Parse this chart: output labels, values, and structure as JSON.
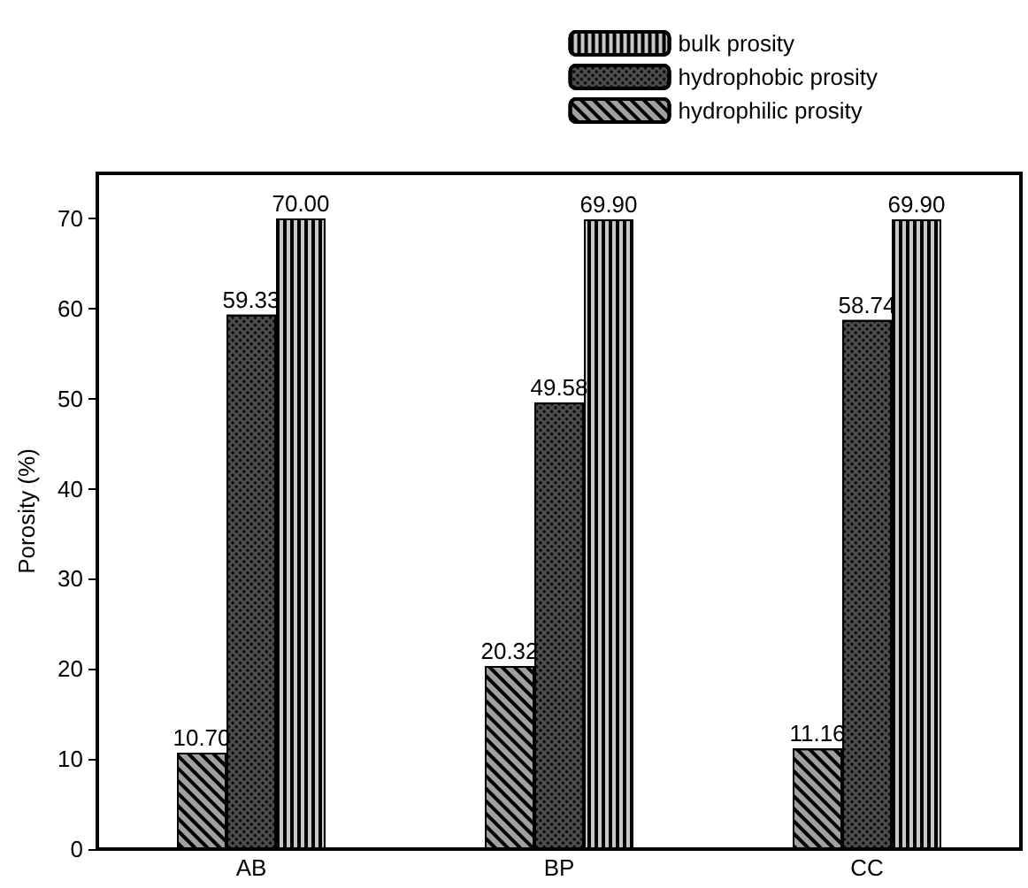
{
  "chart_data": {
    "type": "bar",
    "ylabel": "Porosity (%)",
    "categories": [
      "AB",
      "BP",
      "CC"
    ],
    "series": [
      {
        "name": "hydrophilic prosity",
        "color": "#a0a0a0",
        "values": [
          10.7,
          20.32,
          11.16
        ],
        "value_labels": [
          "10.70",
          "20.32",
          "11.16"
        ]
      },
      {
        "name": "hydrophobic prosity",
        "color": "#505050",
        "values": [
          59.33,
          49.58,
          58.74
        ],
        "value_labels": [
          "59.33",
          "49.58",
          "58.74"
        ]
      },
      {
        "name": "bulk prosity",
        "color": "#c8c8c8",
        "values": [
          70.0,
          69.9,
          69.9
        ],
        "value_labels": [
          "70.00",
          "69.90",
          "69.90"
        ]
      }
    ],
    "ylim": [
      0,
      75
    ],
    "yticks": [
      0,
      10,
      20,
      30,
      40,
      50,
      60,
      70
    ],
    "grid": false,
    "legend": "top right"
  }
}
